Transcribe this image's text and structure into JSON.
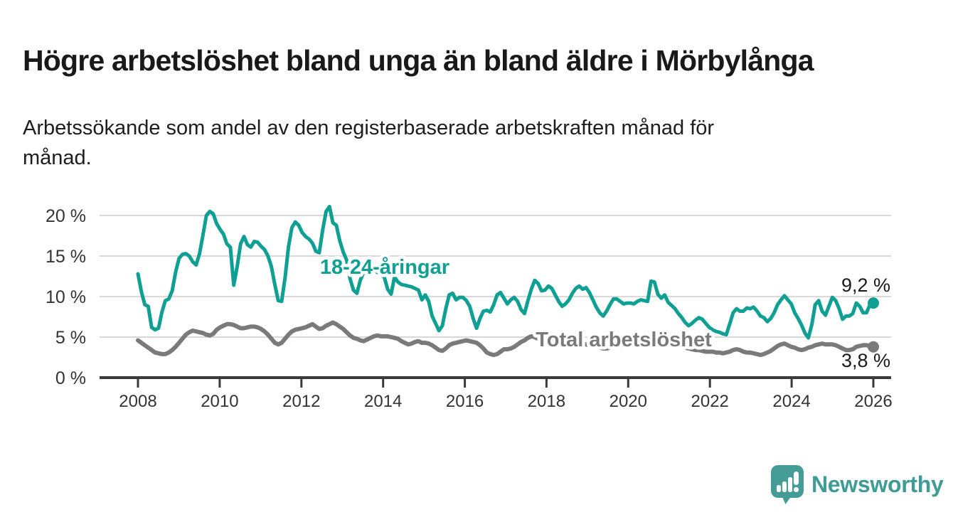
{
  "header": {
    "title": "Högre arbetslöshet bland unga än bland äldre i Mörbylånga",
    "subtitle_lines": [
      "Arbetssökande som andel av den registerbaserade arbetskraften månad för",
      "månad."
    ]
  },
  "chart": {
    "y_ticks": [
      "20 %",
      "15 %",
      "10 %",
      "5 %",
      "0 %"
    ],
    "x_ticks": [
      "2008",
      "2010",
      "2012",
      "2014",
      "2016",
      "2018",
      "2020",
      "2022",
      "2024",
      "2026"
    ],
    "series_labels": {
      "youth": "18-24-åringar",
      "total": "Total arbetslöshet"
    },
    "end_labels": {
      "youth": "9,2 %",
      "total": "3,8 %"
    },
    "colors": {
      "youth": "#10a093",
      "total": "#7a7a7a",
      "grid": "#d9d9d9",
      "axis": "#3a3a3a",
      "value_text": "#1a1a1a"
    }
  },
  "branding": {
    "logo_text": "Newsworthy",
    "logo_color": "#3d9c95",
    "icon_color": "#459c96"
  },
  "chart_data": {
    "type": "line",
    "title": "Högre arbetslöshet bland unga än bland äldre i Mörbylånga",
    "subtitle": "Arbetssökande som andel av den registerbaserade arbetskraften månad för månad.",
    "x_unit": "month",
    "x_start": "2008-01",
    "x_end": "2025-12",
    "points_per_series": 216,
    "xlabel": "",
    "ylabel": "",
    "y_unit": "%",
    "ylim": [
      0,
      22
    ],
    "y_tick_values": [
      0,
      5,
      10,
      15,
      20
    ],
    "x_tick_years": [
      2008,
      2010,
      2012,
      2014,
      2016,
      2018,
      2020,
      2022,
      2024,
      2026
    ],
    "grid": "horizontal",
    "legend_position": "inline-labels",
    "end_values": {
      "18-24-åringar": 9.2,
      "Total arbetslöshet": 3.8
    },
    "series": [
      {
        "name": "18-24-åringar",
        "color": "#10a093",
        "values": [
          12.8,
          10.6,
          9.0,
          8.8,
          6.2,
          5.9,
          6.1,
          8.1,
          9.5,
          9.7,
          10.7,
          13.0,
          14.7,
          15.2,
          15.3,
          15.0,
          14.3,
          13.9,
          15.3,
          17.6,
          20.0,
          20.5,
          20.2,
          19.0,
          18.3,
          17.7,
          16.5,
          16.1,
          11.4,
          13.7,
          16.5,
          17.4,
          16.4,
          16.1,
          16.8,
          16.7,
          16.2,
          15.8,
          15.0,
          13.7,
          11.5,
          9.5,
          9.4,
          12.3,
          16.1,
          18.5,
          19.2,
          18.8,
          17.9,
          17.4,
          17.1,
          16.6,
          15.6,
          15.4,
          18.2,
          20.5,
          21.1,
          19.1,
          18.8,
          16.9,
          15.5,
          14.5,
          12.2,
          10.8,
          10.4,
          12.0,
          13.0,
          13.2,
          13.3,
          13.2,
          13.0,
          12.8,
          12.4,
          10.9,
          10.3,
          12.4,
          11.8,
          11.5,
          11.4,
          11.3,
          11.2,
          11.0,
          10.8,
          9.6,
          10.2,
          9.4,
          7.6,
          6.7,
          5.8,
          6.4,
          8.5,
          10.2,
          10.4,
          9.6,
          9.9,
          9.9,
          9.5,
          8.8,
          7.3,
          6.1,
          7.3,
          8.2,
          8.3,
          8.1,
          9.0,
          10.2,
          10.5,
          9.8,
          9.1,
          9.6,
          9.9,
          9.4,
          8.4,
          7.9,
          9.5,
          10.9,
          12.0,
          11.6,
          10.7,
          10.8,
          11.3,
          11.0,
          10.2,
          9.4,
          8.8,
          9.1,
          9.6,
          10.4,
          11.0,
          11.3,
          10.9,
          11.1,
          10.5,
          9.6,
          8.7,
          8.0,
          7.6,
          8.2,
          9.0,
          9.7,
          9.7,
          9.4,
          9.1,
          9.2,
          9.2,
          9.1,
          9.4,
          9.6,
          9.5,
          9.4,
          11.9,
          11.8,
          10.3,
          9.8,
          10.2,
          9.3,
          8.9,
          8.5,
          7.9,
          7.4,
          6.8,
          6.4,
          6.7,
          7.1,
          7.4,
          7.2,
          6.7,
          6.2,
          5.9,
          5.7,
          5.6,
          5.4,
          5.3,
          6.6,
          8.0,
          8.5,
          8.2,
          8.2,
          8.6,
          8.5,
          8.7,
          8.2,
          7.6,
          7.4,
          6.9,
          7.3,
          8.0,
          9.0,
          9.6,
          10.1,
          9.6,
          9.1,
          8.0,
          7.3,
          6.5,
          5.5,
          4.9,
          6.5,
          9.0,
          9.5,
          8.2,
          7.7,
          8.8,
          9.9,
          9.5,
          8.5,
          7.2,
          7.6,
          7.6,
          7.9,
          9.2,
          8.8,
          8.0,
          8.0,
          9.0,
          9.2
        ]
      },
      {
        "name": "Total arbetslöshet",
        "color": "#7a7a7a",
        "values": [
          4.6,
          4.3,
          4.0,
          3.7,
          3.4,
          3.1,
          3.0,
          2.9,
          2.9,
          3.1,
          3.4,
          3.8,
          4.3,
          4.8,
          5.3,
          5.6,
          5.8,
          5.7,
          5.6,
          5.5,
          5.3,
          5.2,
          5.4,
          5.9,
          6.2,
          6.4,
          6.6,
          6.6,
          6.5,
          6.3,
          6.1,
          6.1,
          6.2,
          6.3,
          6.3,
          6.2,
          6.0,
          5.7,
          5.3,
          4.8,
          4.3,
          4.1,
          4.3,
          4.8,
          5.3,
          5.7,
          5.9,
          6.0,
          6.1,
          6.2,
          6.4,
          6.6,
          6.3,
          6.0,
          6.1,
          6.4,
          6.6,
          6.8,
          6.6,
          6.3,
          6.0,
          5.6,
          5.2,
          4.9,
          4.8,
          4.6,
          4.5,
          4.7,
          4.9,
          5.1,
          5.2,
          5.1,
          5.1,
          5.1,
          5.0,
          4.9,
          4.8,
          4.5,
          4.3,
          4.1,
          4.2,
          4.4,
          4.5,
          4.3,
          4.3,
          4.2,
          4.0,
          3.7,
          3.4,
          3.3,
          3.6,
          4.0,
          4.2,
          4.3,
          4.4,
          4.5,
          4.6,
          4.5,
          4.4,
          4.3,
          4.0,
          3.6,
          3.1,
          2.9,
          2.8,
          2.9,
          3.2,
          3.5,
          3.5,
          3.6,
          3.8,
          4.1,
          4.4,
          4.6,
          4.9,
          5.1,
          5.0,
          4.8,
          4.6,
          4.4,
          4.4,
          4.3,
          4.2,
          4.1,
          4.0,
          4.0,
          4.1,
          4.2,
          4.2,
          4.2,
          4.1,
          4.1,
          4.0,
          3.9,
          3.8,
          3.7,
          3.6,
          3.6,
          3.7,
          3.8,
          3.9,
          3.9,
          4.0,
          4.0,
          4.1,
          4.1,
          4.2,
          4.4,
          4.5,
          4.6,
          4.6,
          4.5,
          4.4,
          4.3,
          4.2,
          4.2,
          4.1,
          4.0,
          3.9,
          3.8,
          3.7,
          3.6,
          3.5,
          3.4,
          3.4,
          3.3,
          3.2,
          3.2,
          3.2,
          3.1,
          3.1,
          3.0,
          3.1,
          3.2,
          3.4,
          3.5,
          3.4,
          3.2,
          3.1,
          3.1,
          3.0,
          2.9,
          2.8,
          2.9,
          3.1,
          3.3,
          3.6,
          3.9,
          4.1,
          4.2,
          4.0,
          3.8,
          3.7,
          3.5,
          3.4,
          3.5,
          3.7,
          3.8,
          4.0,
          4.1,
          4.2,
          4.1,
          4.1,
          4.1,
          4.0,
          3.8,
          3.6,
          3.4,
          3.4,
          3.5,
          3.8,
          3.9,
          4.0,
          4.0,
          3.9,
          3.8
        ]
      }
    ]
  }
}
